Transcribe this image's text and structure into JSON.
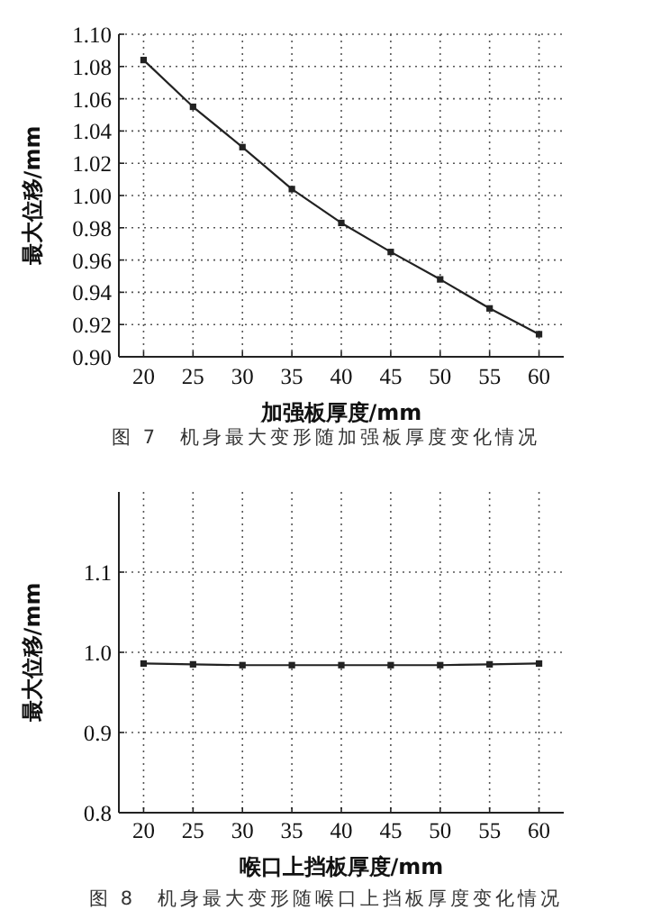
{
  "chart_data": [
    {
      "type": "line",
      "x": [
        20,
        25,
        30,
        35,
        40,
        45,
        50,
        55,
        60
      ],
      "series": [
        {
          "color": "#222222",
          "values": [
            1.084,
            1.055,
            1.03,
            1.004,
            0.983,
            0.965,
            0.948,
            0.93,
            0.914
          ]
        }
      ],
      "xlim": [
        17.5,
        62.5
      ],
      "ylim": [
        0.9,
        1.1
      ],
      "xticks": [
        20,
        25,
        30,
        35,
        40,
        45,
        50,
        55,
        60
      ],
      "yticks": [
        {
          "value": 0.9,
          "label": "0.90"
        },
        {
          "value": 0.92,
          "label": "0.92"
        },
        {
          "value": 0.94,
          "label": "0.94"
        },
        {
          "value": 0.96,
          "label": "0.96"
        },
        {
          "value": 0.98,
          "label": "0.98"
        },
        {
          "value": 1.0,
          "label": "1.00"
        },
        {
          "value": 1.02,
          "label": "1.02"
        },
        {
          "value": 1.04,
          "label": "1.04"
        },
        {
          "value": 1.06,
          "label": "1.06"
        },
        {
          "value": 1.08,
          "label": "1.08"
        },
        {
          "value": 1.1,
          "label": "1.10"
        }
      ],
      "xlabel": "加强板厚度/mm",
      "ylabel": "最大位移/mm",
      "grid": true,
      "marker": "square",
      "line_style": "solid",
      "annotations": [
        "图 7　机身最大变形随加强板厚度变化情况"
      ]
    },
    {
      "type": "line",
      "x": [
        20,
        25,
        30,
        35,
        40,
        45,
        50,
        55,
        60
      ],
      "series": [
        {
          "color": "#222222",
          "values": [
            0.986,
            0.985,
            0.984,
            0.984,
            0.984,
            0.984,
            0.984,
            0.985,
            0.986
          ]
        }
      ],
      "xlim": [
        17.5,
        62.5
      ],
      "ylim": [
        0.8,
        1.2
      ],
      "xticks": [
        20,
        25,
        30,
        35,
        40,
        45,
        50,
        55,
        60
      ],
      "yticks": [
        0.8,
        0.9,
        {
          "value": 1.0,
          "label": "1.0"
        },
        1.1
      ],
      "xlabel": "喉口上挡板厚度/mm",
      "ylabel": "最大位移/mm",
      "grid": true,
      "marker": "square",
      "line_style": "solid",
      "annotations": [
        "图 8　机身最大变形随喉口上挡板厚度变化情况"
      ]
    }
  ]
}
